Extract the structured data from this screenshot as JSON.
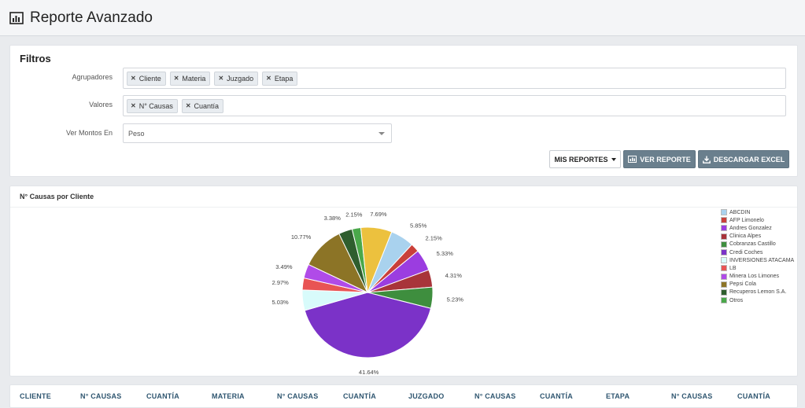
{
  "header": {
    "title": "Reporte Avanzado"
  },
  "filters": {
    "title": "Filtros",
    "agrupadores_label": "Agrupadores",
    "agrupadores": [
      "Cliente",
      "Materia",
      "Juzgado",
      "Etapa"
    ],
    "valores_label": "Valores",
    "valores": [
      "N° Causas",
      "Cuantía"
    ],
    "montos_label": "Ver Montos En",
    "montos_value": "Peso",
    "buttons": {
      "mis_reportes": "MIS REPORTES",
      "ver_reporte": "VER REPORTE",
      "descargar_excel": "DESCARGAR EXCEL"
    }
  },
  "chart_panel": {
    "title": "N° Causas por Cliente"
  },
  "chart_data": {
    "type": "pie",
    "title": "N° Causas por Cliente",
    "slices": [
      {
        "label": "ABCDIN",
        "value": 5.85,
        "display": "5.85%",
        "color": "#a9d2ee"
      },
      {
        "label": "AFP Limonelo",
        "value": 2.15,
        "display": "2.15%",
        "color": "#c9403a"
      },
      {
        "label": "Andres Gonzalez",
        "value": 5.33,
        "display": "5.33%",
        "color": "#9b3de0"
      },
      {
        "label": "Clinica Alpes",
        "value": 4.31,
        "display": "4.31%",
        "color": "#a8343a"
      },
      {
        "label": "Cobranzas Castillo",
        "value": 5.23,
        "display": "5.23%",
        "color": "#3e8e3e"
      },
      {
        "label": "Credi Coches",
        "value": 41.64,
        "display": "41.64%",
        "color": "#7b32c8"
      },
      {
        "label": "INVERSIONES ATACAMA",
        "value": 5.03,
        "display": "5.03%",
        "color": "#d8fbfb"
      },
      {
        "label": "LB",
        "value": 2.97,
        "display": "2.97%",
        "color": "#e85454"
      },
      {
        "label": "Minera Los Limones",
        "value": 3.49,
        "display": "3.49%",
        "color": "#b04be8"
      },
      {
        "label": "Pepsi Cola",
        "value": 10.77,
        "display": "10.77%",
        "color": "#8c7426"
      },
      {
        "label": "Recuperos Lemon S.A.",
        "value": 3.38,
        "display": "3.38%",
        "color": "#2f5e2e"
      },
      {
        "label": "Otros",
        "value": 2.15,
        "display": "2.15%",
        "color": "#4aa84a"
      },
      {
        "label": "",
        "value": 7.69,
        "display": "7.69%",
        "color": "#ecc13e"
      }
    ],
    "legend_position": "right"
  },
  "table": {
    "headers": [
      "CLIENTE",
      "N° CAUSAS",
      "CUANTÍA",
      "MATERIA",
      "N° CAUSAS",
      "CUANTÍA",
      "JUZGADO",
      "N° CAUSAS",
      "CUANTÍA",
      "ETAPA",
      "N° CAUSAS",
      "CUANTÍA"
    ]
  }
}
